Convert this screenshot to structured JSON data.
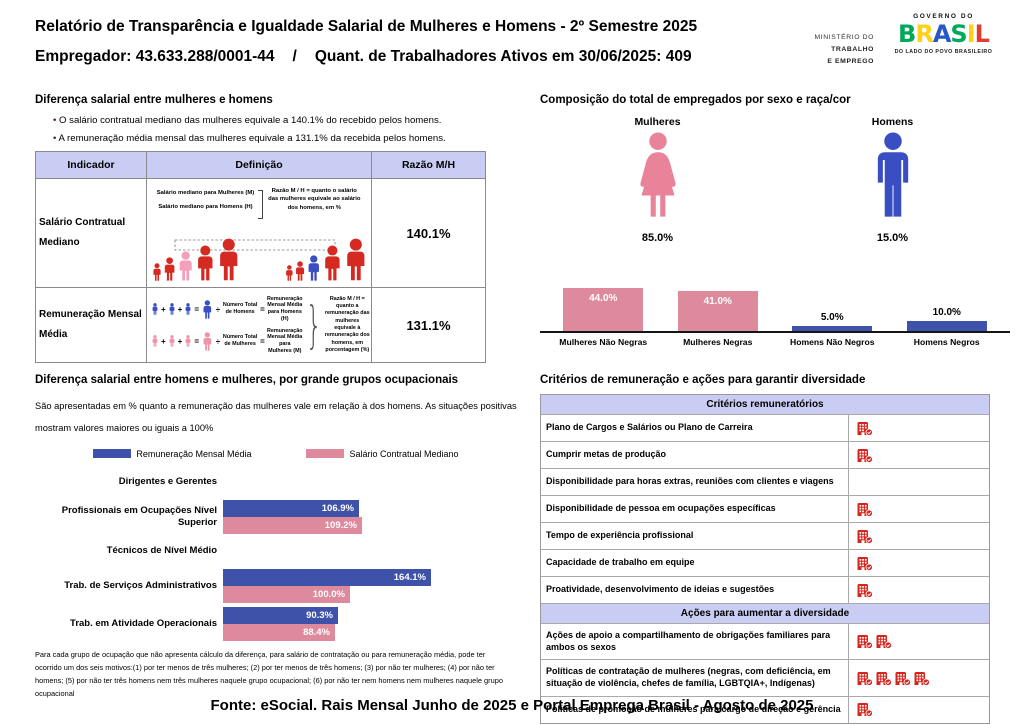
{
  "colors": {
    "bar_blue": "#3d52a8",
    "bar_pink": "#dd8a9c",
    "male_blue": "#3a4ec4",
    "female_pink": "#e8839a",
    "figure_red": "#d42a22",
    "figure_pink": "#f2a0bb",
    "icon_red": "#d6251d",
    "table_header_bg": "#c9cdf3"
  },
  "header": {
    "title": "Relatório de Transparência e Igualdade Salarial de Mulheres e Homens - 2º Semestre 2025",
    "employer": "Empregador: 43.633.288/0001-44",
    "separator": "/",
    "active_workers": "Quant. de Trabalhadores Ativos em 30/06/2025: 409",
    "ministry_lines": [
      "MINISTÉRIO DO",
      "TRABALHO",
      "E EMPREGO"
    ],
    "gov_top": "GOVERNO DO",
    "gov_brand": "BRASIL",
    "gov_bottom": "DO LADO DO POVO BRASILEIRO"
  },
  "salary_gap": {
    "title": "Diferença salarial entre mulheres e homens",
    "bullets": [
      "O salário contratual mediano das mulheres equivale a 140.1% do recebido pelos homens.",
      "A remuneração média mensal das mulheres equivale a 131.1% da recebida pelos homens."
    ],
    "table": {
      "headers": [
        "Indicador",
        "Definição",
        "Razão M/H"
      ],
      "row1": {
        "indicator": "Salário Contratual Mediano",
        "def_line1": "Salário mediano para Mulheres (M)",
        "def_line2": "Salário mediano para Homens (H)",
        "def_note": "Razão M / H = quanto o salário das mulheres equivale ao salário dos homens, em %",
        "ratio": "140.1%"
      },
      "row2": {
        "indicator": "Remuneração Mensal Média",
        "men_divisor": "Número Total de Homens",
        "men_result": "Remuneração Mensal Média para Homens (H)",
        "women_divisor": "Número Total de Mulheres",
        "women_result": "Remuneração Mensal Média para Mulheres (M)",
        "def_note": "Razão M / H = quanto a remuneração das mulheres equivale à remuneração dos homens, em porcentagem (%)",
        "ratio": "131.1%"
      }
    }
  },
  "composition": {
    "title": "Composição do total de empregados por sexo e raça/cor",
    "female_label": "Mulheres",
    "female_value": "85.0%",
    "male_label": "Homens",
    "male_value": "15.0%"
  },
  "occupational": {
    "title": "Diferença salarial entre homens e mulheres, por grande grupos ocupacionais",
    "desc_line1": "São apresentadas em % quanto a remuneração das mulheres vale em relação à dos homens. As situações positivas",
    "desc_line2": "mostram valores maiores ou iguais a 100%",
    "footnote": "Para cada grupo de ocupação que não apresenta cálculo da diferença, para salário de contratação ou para remuneração média, pode ter ocorrido um dos seis motivos:(1) por ter menos de três mulheres; (2) por ter menos de três homens; (3) por não ter mulheres; (4) por não ter homens; (5) por não ter três homens nem três mulheres naquele grupo ocupacional; (6) por não ter nem homens nem mulheres naquele grupo ocupacional"
  },
  "criteria": {
    "title": "Critérios de remuneração e ações para garantir diversidade",
    "sections": [
      {
        "header": "Critérios remuneratórios",
        "rows": [
          {
            "label": "Plano de Cargos e Salários ou Plano de Carreira",
            "icons": 1
          },
          {
            "label": "Cumprir metas de produção",
            "icons": 1
          },
          {
            "label": "Disponibilidade para horas extras, reuniões com clientes e viagens",
            "icons": 0
          },
          {
            "label": "Disponibilidade de pessoa em ocupações específicas",
            "icons": 1
          },
          {
            "label": "Tempo de experiência profissional",
            "icons": 1
          },
          {
            "label": "Capacidade de trabalho em equipe",
            "icons": 1
          },
          {
            "label": "Proatividade, desenvolvimento de ideias e sugestões",
            "icons": 1
          }
        ]
      },
      {
        "header": "Ações para aumentar a diversidade",
        "rows": [
          {
            "label": "Ações de apoio a compartilhamento de obrigações familiares para ambos os sexos",
            "icons": 2
          },
          {
            "label": "Políticas de contratação de mulheres (negras, com deficiência, em situação de violência, chefes de família, LGBTQIA+, Indígenas)",
            "icons": 4
          },
          {
            "label": "Políticas de promoção de mulheres para cargo de direção e gerência",
            "icons": 1
          }
        ]
      }
    ]
  },
  "footer": "Fonte: eSocial. Rais Mensal Junho de 2025 e Portal Emprega Brasil - Agosto de 2025",
  "chart_data": [
    {
      "type": "bar",
      "title": "Composição do total de empregados por sexo e raça/cor",
      "categories": [
        "Mulheres Não Negras",
        "Mulheres Negras",
        "Homens Não Negros",
        "Homens Negros"
      ],
      "values": [
        44.0,
        41.0,
        5.0,
        10.0
      ],
      "labels": [
        "44.0%",
        "41.0%",
        "5.0%",
        "10.0%"
      ],
      "bar_colors": [
        "#dd8a9c",
        "#dd8a9c",
        "#3d52a8",
        "#3d52a8"
      ],
      "label_placement": [
        "inside",
        "inside",
        "above",
        "above"
      ],
      "gender_split": {
        "Mulheres": 85.0,
        "Homens": 15.0
      },
      "ylim": [
        0,
        50
      ],
      "grid": false,
      "legend": false
    },
    {
      "type": "bar",
      "orientation": "horizontal",
      "title": "Diferença salarial entre homens e mulheres, por grande grupos ocupacionais",
      "categories": [
        "Dirigentes e Gerentes",
        "Profissionais em Ocupações Nível Superior",
        "Técnicos de Nível Médio",
        "Trab. de Serviços Administrativos",
        "Trab. em Atividade Operacionais"
      ],
      "series": [
        {
          "name": "Remuneração Mensal Média",
          "color": "#3d52a8",
          "values": [
            null,
            106.9,
            null,
            164.1,
            90.3
          ],
          "labels": [
            "",
            "106.9%",
            "",
            "164.1%",
            "90.3%"
          ]
        },
        {
          "name": "Salário Contratual Mediano",
          "color": "#dd8a9c",
          "values": [
            null,
            109.2,
            null,
            100.0,
            88.4
          ],
          "labels": [
            "",
            "109.2%",
            "",
            "100.0%",
            "88.4%"
          ]
        }
      ],
      "value_suffix": "%",
      "xlim": [
        0,
        180
      ],
      "legend_position": "top",
      "grid": false
    }
  ]
}
